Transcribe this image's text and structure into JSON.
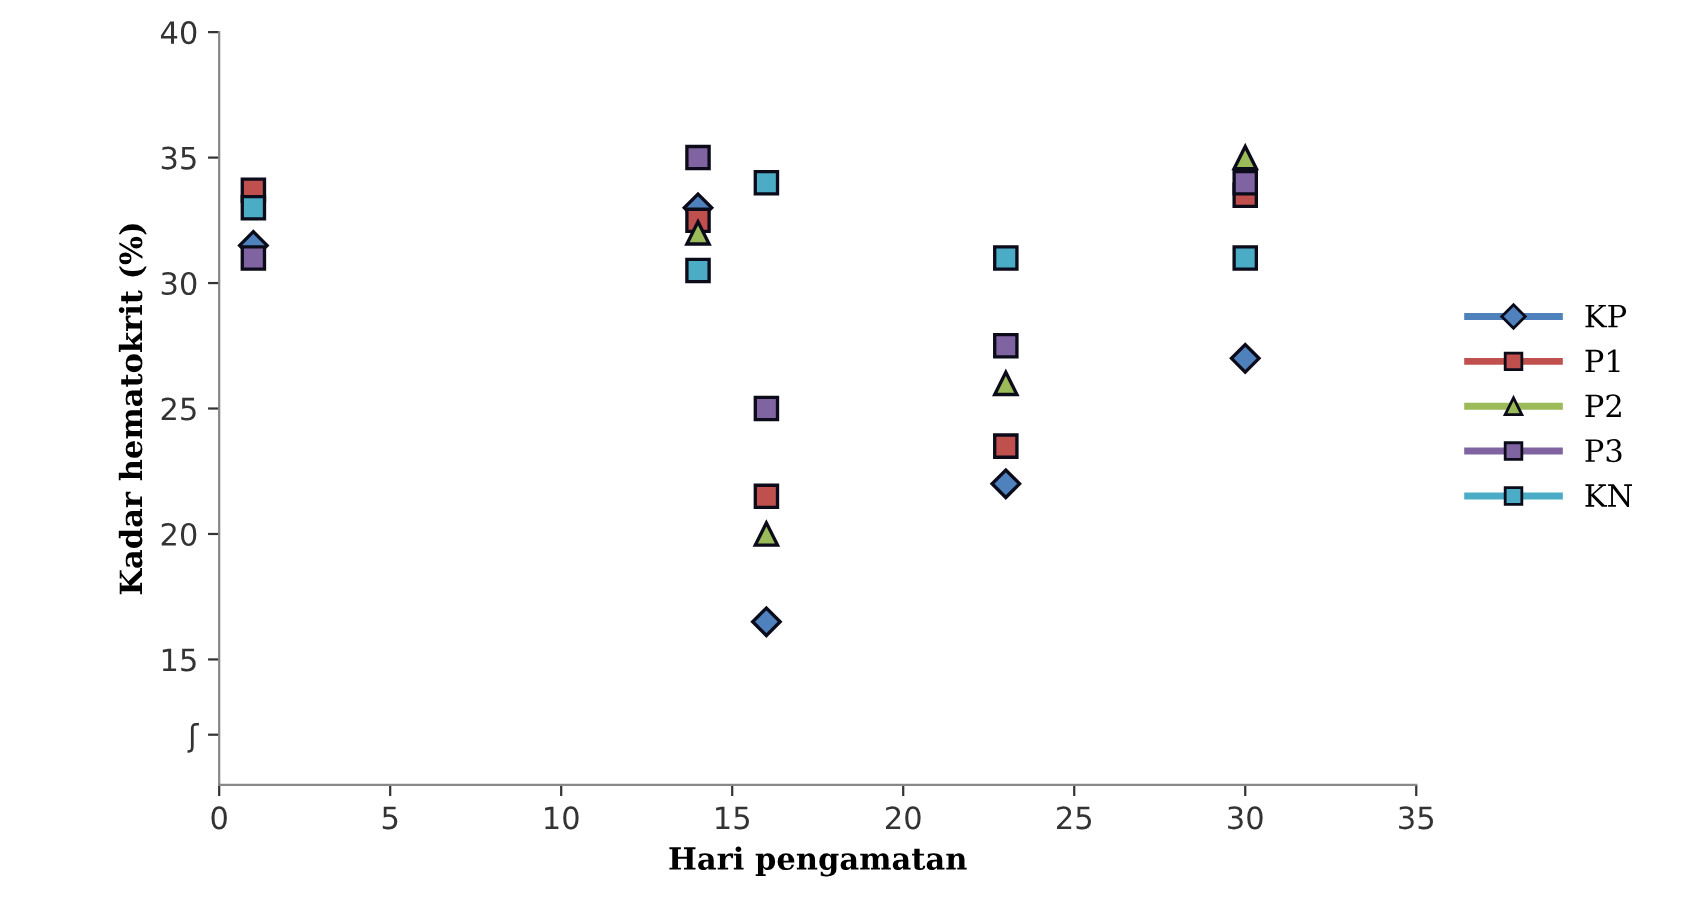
{
  "chart_data": {
    "type": "scatter",
    "xlabel": "Hari pengamatan",
    "ylabel": "Kadar hematokrit (%)",
    "x": [
      1,
      14,
      16,
      23,
      30
    ],
    "series": [
      {
        "name": "KP",
        "color": "#4f81bd",
        "marker": "diamond",
        "values": [
          31.5,
          33,
          16.5,
          22,
          27
        ]
      },
      {
        "name": "P1",
        "color": "#c0504d",
        "marker": "square",
        "values": [
          33.7,
          32.5,
          21.5,
          23.5,
          33.5
        ]
      },
      {
        "name": "P2",
        "color": "#9bbb59",
        "marker": "triangle",
        "values": [
          null,
          32,
          20,
          26,
          35
        ]
      },
      {
        "name": "P3",
        "color": "#8064a2",
        "marker": "square",
        "values": [
          31,
          35,
          25,
          27.5,
          34
        ]
      },
      {
        "name": "KN",
        "color": "#4bacc6",
        "marker": "square",
        "values": [
          33,
          30.5,
          34,
          31,
          31
        ]
      }
    ],
    "xlim": [
      0,
      35
    ],
    "xticks": [
      0,
      5,
      10,
      15,
      20,
      25,
      30,
      35
    ],
    "ylim": [
      10,
      40
    ],
    "yticks": [
      {
        "value": 12,
        "label": "ʃ"
      },
      15,
      20,
      25,
      30,
      35,
      40
    ],
    "grid": false,
    "legend": "right"
  }
}
